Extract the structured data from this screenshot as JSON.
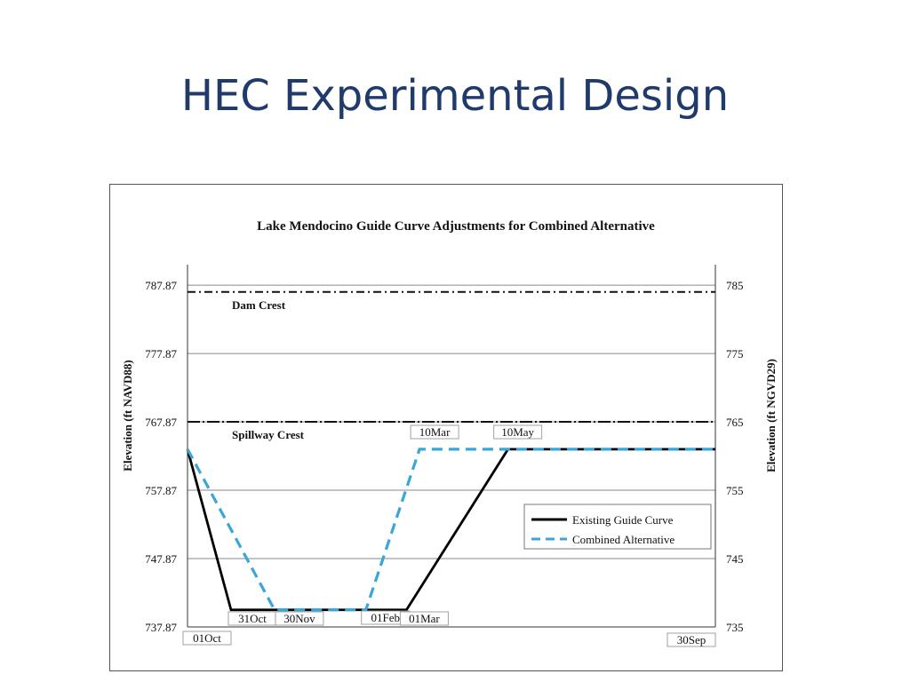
{
  "slide": {
    "title": "HEC Experimental Design"
  },
  "chart_data": {
    "type": "line",
    "title": "Lake Mendocino Guide Curve Adjustments for Combined Alternative",
    "ylabel": "Elevation (ft NAVD88)",
    "y2label": "Elevation (ft NGVD29)",
    "ylim": [
      737.87,
      790.87
    ],
    "yticks": [
      "737.87",
      "747.87",
      "757.87",
      "767.87",
      "777.87",
      "787.87"
    ],
    "y2lim": [
      735,
      788
    ],
    "y2ticks": [
      "735",
      "745",
      "755",
      "765",
      "775",
      "785"
    ],
    "grid": true,
    "legend_position": "right-middle",
    "xlabels": [
      "01Oct",
      "31Oct",
      "30Nov",
      "01Feb",
      "01Mar",
      "10Mar",
      "10May",
      "30Sep"
    ],
    "reference_lines": [
      {
        "name": "Dam Crest",
        "value": 786.87
      },
      {
        "name": "Spillway Crest",
        "value": 767.87
      }
    ],
    "series": [
      {
        "name": "Existing Guide Curve",
        "color": "#000000",
        "style": "solid",
        "x": [
          "01Oct",
          "31Oct",
          "01Mar",
          "10May",
          "30Sep"
        ],
        "y": [
          763.87,
          740.37,
          740.37,
          763.87,
          763.87
        ]
      },
      {
        "name": "Combined Alternative",
        "color": "#3aa6d8",
        "style": "dashed",
        "x": [
          "01Oct",
          "30Nov",
          "01Feb",
          "10Mar",
          "30Sep"
        ],
        "y": [
          763.87,
          740.37,
          740.37,
          763.87,
          763.87
        ]
      }
    ]
  }
}
